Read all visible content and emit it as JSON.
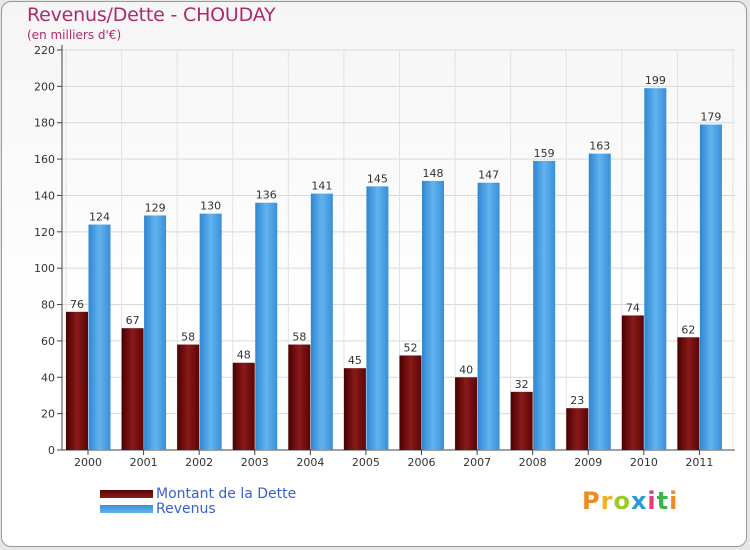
{
  "title": "Revenus/Dette - CHOUDAY",
  "subtitle": "(en milliers d'€)",
  "logo_text": "Proxiti",
  "colors": {
    "debt": "#7a1212",
    "revenue": "#4da4e6",
    "title": "#b02a6a",
    "legend_text": "#3a5fcd"
  },
  "legend": {
    "debt_label": "Montant de la Dette",
    "revenue_label": "Revenus"
  },
  "chart_data": {
    "type": "bar",
    "title": "Revenus/Dette - CHOUDAY",
    "ylabel": "(en milliers d'€)",
    "xlabel": "",
    "categories": [
      "2000",
      "2001",
      "2002",
      "2003",
      "2004",
      "2005",
      "2006",
      "2007",
      "2008",
      "2009",
      "2010",
      "2011"
    ],
    "series": [
      {
        "name": "Montant de la Dette",
        "values": [
          76,
          67,
          58,
          48,
          58,
          45,
          52,
          40,
          32,
          23,
          74,
          62
        ]
      },
      {
        "name": "Revenus",
        "values": [
          124,
          129,
          130,
          136,
          141,
          145,
          148,
          147,
          159,
          163,
          199,
          179
        ]
      }
    ],
    "ylim": [
      0,
      220
    ],
    "yticks": [
      0,
      20,
      40,
      60,
      80,
      100,
      120,
      140,
      160,
      180,
      200,
      220
    ],
    "grid": true,
    "legend_position": "bottom-left"
  }
}
